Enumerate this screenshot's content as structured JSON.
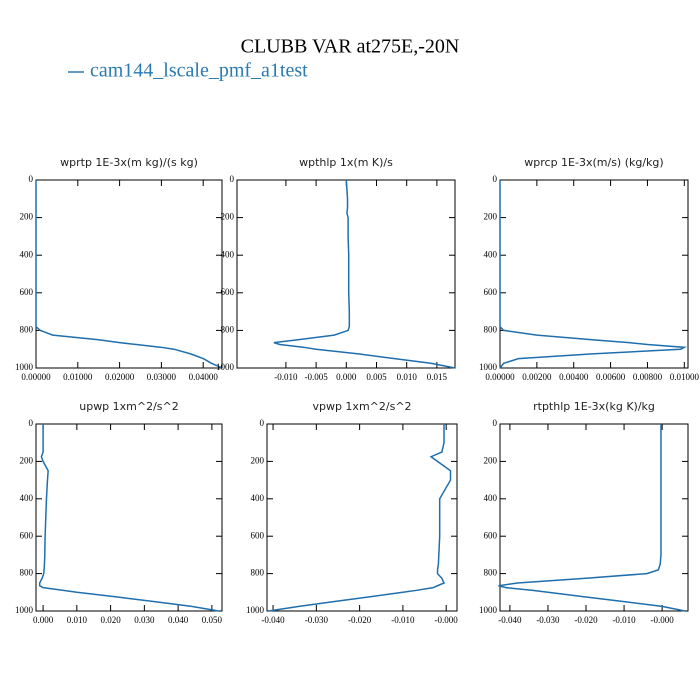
{
  "title": "CLUBB VAR at275E,-20N",
  "legend": {
    "name": "cam144_lscale_pmf_a1test",
    "color": "#2a7ab0"
  },
  "chart_data": [
    {
      "type": "line",
      "title": "wprtp  1E-3x(m kg)/(s kg)",
      "y": [
        0,
        100,
        150,
        175,
        200,
        250,
        300,
        400,
        500,
        600,
        700,
        750,
        780,
        800,
        825,
        850,
        865,
        875,
        890,
        900,
        925,
        950,
        975,
        1000
      ],
      "series": [
        {
          "color": "#1f6fae",
          "values": [
            0,
            0,
            0,
            0,
            0,
            0,
            0,
            0,
            0,
            0,
            0,
            0,
            0,
            0.001,
            0.004,
            0.015,
            0.02,
            0.024,
            0.03,
            0.033,
            0.037,
            0.04,
            0.042,
            0.0445
          ]
        }
      ],
      "xlim": [
        0,
        0.0445
      ],
      "xticks": [
        {
          "value": 0,
          "label": "0.00000"
        },
        {
          "value": 0.01,
          "label": "0.01000"
        },
        {
          "value": 0.02,
          "label": "0.02000"
        },
        {
          "value": 0.03,
          "label": "0.03000"
        },
        {
          "value": 0.04,
          "label": "0.04000"
        }
      ],
      "ylim": [
        1000,
        0
      ],
      "yticks": [
        0,
        200,
        400,
        600,
        800,
        1000
      ]
    },
    {
      "type": "line",
      "title": "wpthlp  1x(m K)/s",
      "y": [
        0,
        100,
        150,
        175,
        200,
        250,
        300,
        400,
        500,
        600,
        700,
        750,
        780,
        800,
        825,
        850,
        865,
        875,
        890,
        900,
        925,
        950,
        975,
        1000
      ],
      "series": [
        {
          "color": "#1f6fae",
          "values": [
            0,
            0.0002,
            0.0002,
            0.0001,
            0.0003,
            0.0003,
            0.0003,
            0.0004,
            0.0004,
            0.0004,
            0.0005,
            0.0005,
            0.0005,
            0.0003,
            -0.002,
            -0.008,
            -0.012,
            -0.011,
            -0.007,
            -0.005,
            0.002,
            0.008,
            0.014,
            0.018
          ]
        }
      ],
      "xlim": [
        -0.0181,
        0.018
      ],
      "xticks": [
        {
          "value": -0.01,
          "label": "-0.010"
        },
        {
          "value": -0.005,
          "label": "-0.005"
        },
        {
          "value": 0,
          "label": "0.000"
        },
        {
          "value": 0.005,
          "label": "0.005"
        },
        {
          "value": 0.01,
          "label": "0.010"
        },
        {
          "value": 0.015,
          "label": "0.015"
        }
      ],
      "ylim": [
        1000,
        0
      ],
      "yticks": [
        0,
        200,
        400,
        600,
        800,
        1000
      ]
    },
    {
      "type": "line",
      "title": "wprcp  1E-3x(m/s) (kg/kg)",
      "y": [
        0,
        100,
        150,
        175,
        200,
        250,
        300,
        400,
        500,
        600,
        700,
        750,
        780,
        800,
        825,
        850,
        865,
        875,
        890,
        900,
        925,
        950,
        975,
        1000
      ],
      "series": [
        {
          "color": "#1f6fae",
          "values": [
            0,
            0,
            0,
            0,
            0,
            0,
            0,
            0,
            0,
            0,
            0,
            0,
            0,
            0.0002,
            0.002,
            0.005,
            0.007,
            0.008,
            0.01,
            0.0098,
            0.005,
            0.001,
            0.0002,
            0
          ]
        }
      ],
      "xlim": [
        0,
        0.0102
      ],
      "xticks": [
        {
          "value": 0,
          "label": "0.00000"
        },
        {
          "value": 0.002,
          "label": "0.00200"
        },
        {
          "value": 0.004,
          "label": "0.00400"
        },
        {
          "value": 0.006,
          "label": "0.00600"
        },
        {
          "value": 0.008,
          "label": "0.00800"
        },
        {
          "value": 0.01,
          "label": "0.01000"
        }
      ],
      "ylim": [
        1000,
        0
      ],
      "yticks": [
        0,
        200,
        400,
        600,
        800,
        1000
      ]
    },
    {
      "type": "line",
      "title": "upwp  1xm^2/s^2",
      "y": [
        0,
        100,
        150,
        175,
        200,
        250,
        300,
        400,
        500,
        600,
        700,
        750,
        780,
        800,
        825,
        850,
        865,
        875,
        890,
        900,
        925,
        950,
        975,
        1000
      ],
      "series": [
        {
          "color": "#1f6fae",
          "values": [
            0,
            0,
            0,
            -0.0005,
            0,
            0.0015,
            0.0013,
            0.001,
            0.0008,
            0.0006,
            0.0005,
            0.0004,
            0.0003,
            0.0002,
            -0.0003,
            -0.001,
            -0.001,
            0,
            0.006,
            0.01,
            0.022,
            0.033,
            0.044,
            0.052
          ]
        }
      ],
      "xlim": [
        -0.0021,
        0.053
      ],
      "xticks": [
        {
          "value": 0,
          "label": "0.000"
        },
        {
          "value": 0.01,
          "label": "0.010"
        },
        {
          "value": 0.02,
          "label": "0.020"
        },
        {
          "value": 0.03,
          "label": "0.030"
        },
        {
          "value": 0.04,
          "label": "0.040"
        },
        {
          "value": 0.05,
          "label": "0.050"
        }
      ],
      "ylim": [
        1000,
        0
      ],
      "yticks": [
        0,
        200,
        400,
        600,
        800,
        1000
      ]
    },
    {
      "type": "line",
      "title": "vpwp  1xm^2/s^2",
      "y": [
        0,
        100,
        150,
        175,
        200,
        250,
        300,
        400,
        500,
        600,
        700,
        750,
        780,
        800,
        825,
        850,
        865,
        875,
        890,
        900,
        925,
        950,
        975,
        1000
      ],
      "series": [
        {
          "color": "#1f6fae",
          "values": [
            -0.0005,
            -0.0005,
            -0.001,
            -0.0035,
            -0.002,
            0.001,
            0.001,
            -0.0015,
            -0.0015,
            -0.0015,
            -0.0017,
            -0.0018,
            -0.002,
            -0.002,
            -0.001,
            -0.0005,
            -0.002,
            -0.003,
            -0.007,
            -0.01,
            -0.018,
            -0.026,
            -0.034,
            -0.041
          ]
        }
      ],
      "xlim": [
        -0.0414,
        0.0025
      ],
      "xticks": [
        {
          "value": -0.04,
          "label": "-0.040"
        },
        {
          "value": -0.03,
          "label": "-0.030"
        },
        {
          "value": -0.02,
          "label": "-0.020"
        },
        {
          "value": -0.01,
          "label": "-0.010"
        },
        {
          "value": 0,
          "label": "-0.000"
        }
      ],
      "ylim": [
        1000,
        0
      ],
      "yticks": [
        0,
        200,
        400,
        600,
        800,
        1000
      ]
    },
    {
      "type": "line",
      "title": "rtpthlp  1E-3x(kg K)/kg",
      "y": [
        0,
        100,
        150,
        175,
        200,
        250,
        300,
        400,
        500,
        600,
        700,
        750,
        780,
        800,
        825,
        850,
        865,
        875,
        890,
        900,
        925,
        950,
        975,
        1000
      ],
      "series": [
        {
          "color": "#1f6fae",
          "values": [
            -0.0003,
            -0.0003,
            -0.0003,
            -0.0003,
            -0.0003,
            -0.0003,
            -0.0003,
            -0.0003,
            -0.0003,
            -0.0003,
            -0.0003,
            -0.0005,
            -0.001,
            -0.004,
            -0.02,
            -0.038,
            -0.043,
            -0.041,
            -0.034,
            -0.03,
            -0.02,
            -0.01,
            0,
            0.006
          ]
        }
      ],
      "xlim": [
        -0.0426,
        0.0068
      ],
      "xticks": [
        {
          "value": -0.04,
          "label": "-0.040"
        },
        {
          "value": -0.03,
          "label": "-0.030"
        },
        {
          "value": -0.02,
          "label": "-0.020"
        },
        {
          "value": -0.01,
          "label": "-0.010"
        },
        {
          "value": 0,
          "label": "-0.000"
        }
      ],
      "ylim": [
        1000,
        0
      ],
      "yticks": [
        0,
        200,
        400,
        600,
        800,
        1000
      ]
    }
  ]
}
